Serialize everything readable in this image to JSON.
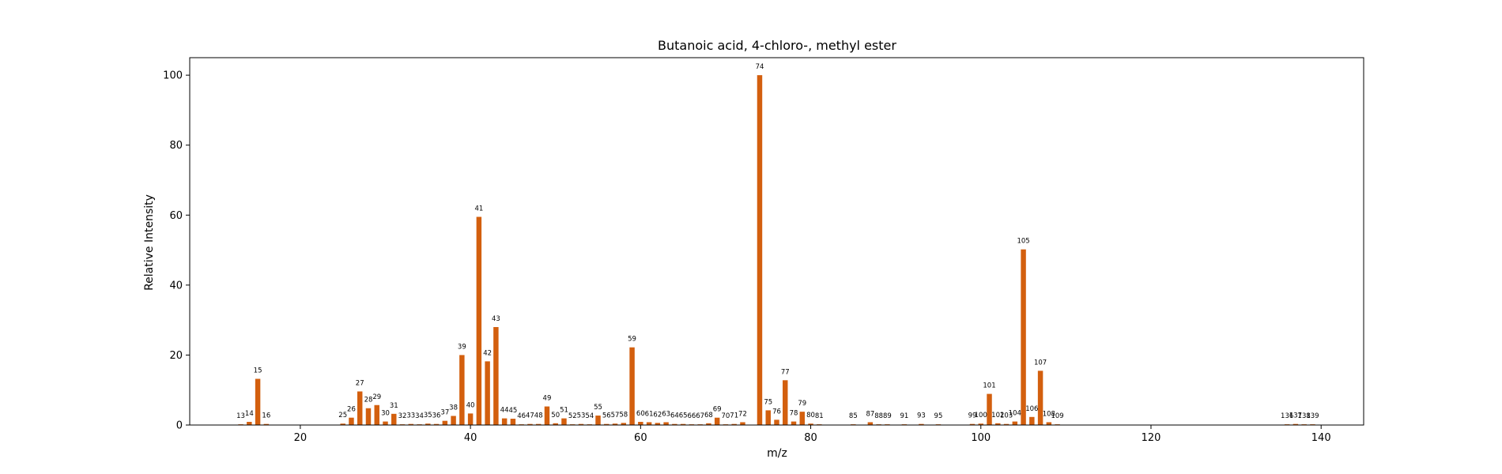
{
  "chart_data": {
    "type": "bar",
    "title": "Butanoic acid, 4-chloro-, methyl ester",
    "xlabel": "m/z",
    "ylabel": "Relative Intensity",
    "xlim": [
      7,
      145
    ],
    "ylim": [
      0,
      105
    ],
    "xticks": [
      20,
      40,
      60,
      80,
      100,
      120,
      140
    ],
    "yticks": [
      0,
      20,
      40,
      60,
      80,
      100
    ],
    "bar_color": "#d35f0e",
    "grid": false,
    "points": [
      {
        "x": 13,
        "y": 0.2
      },
      {
        "x": 14,
        "y": 0.9
      },
      {
        "x": 15,
        "y": 13.2
      },
      {
        "x": 16,
        "y": 0.3
      },
      {
        "x": 25,
        "y": 0.4
      },
      {
        "x": 26,
        "y": 2.1
      },
      {
        "x": 27,
        "y": 9.6
      },
      {
        "x": 28,
        "y": 4.8
      },
      {
        "x": 29,
        "y": 5.7
      },
      {
        "x": 30,
        "y": 1.0
      },
      {
        "x": 31,
        "y": 3.2
      },
      {
        "x": 32,
        "y": 0.2
      },
      {
        "x": 33,
        "y": 0.3
      },
      {
        "x": 34,
        "y": 0.2
      },
      {
        "x": 35,
        "y": 0.4
      },
      {
        "x": 36,
        "y": 0.3
      },
      {
        "x": 37,
        "y": 1.2
      },
      {
        "x": 38,
        "y": 2.6
      },
      {
        "x": 39,
        "y": 20.0
      },
      {
        "x": 40,
        "y": 3.3
      },
      {
        "x": 41,
        "y": 59.5
      },
      {
        "x": 42,
        "y": 18.2
      },
      {
        "x": 43,
        "y": 28.0
      },
      {
        "x": 44,
        "y": 1.9
      },
      {
        "x": 45,
        "y": 1.8
      },
      {
        "x": 46,
        "y": 0.2
      },
      {
        "x": 47,
        "y": 0.3
      },
      {
        "x": 48,
        "y": 0.3
      },
      {
        "x": 49,
        "y": 5.3
      },
      {
        "x": 50,
        "y": 0.5
      },
      {
        "x": 51,
        "y": 1.9
      },
      {
        "x": 52,
        "y": 0.2
      },
      {
        "x": 53,
        "y": 0.3
      },
      {
        "x": 54,
        "y": 0.2
      },
      {
        "x": 55,
        "y": 2.7
      },
      {
        "x": 56,
        "y": 0.3
      },
      {
        "x": 57,
        "y": 0.4
      },
      {
        "x": 58,
        "y": 0.6
      },
      {
        "x": 59,
        "y": 22.2
      },
      {
        "x": 60,
        "y": 0.9
      },
      {
        "x": 61,
        "y": 0.8
      },
      {
        "x": 62,
        "y": 0.6
      },
      {
        "x": 63,
        "y": 0.8
      },
      {
        "x": 64,
        "y": 0.3
      },
      {
        "x": 65,
        "y": 0.3
      },
      {
        "x": 66,
        "y": 0.2
      },
      {
        "x": 67,
        "y": 0.2
      },
      {
        "x": 68,
        "y": 0.5
      },
      {
        "x": 69,
        "y": 2.1
      },
      {
        "x": 70,
        "y": 0.2
      },
      {
        "x": 71,
        "y": 0.3
      },
      {
        "x": 72,
        "y": 0.8
      },
      {
        "x": 74,
        "y": 100
      },
      {
        "x": 75,
        "y": 4.2
      },
      {
        "x": 76,
        "y": 1.5
      },
      {
        "x": 77,
        "y": 12.8
      },
      {
        "x": 78,
        "y": 1.0
      },
      {
        "x": 79,
        "y": 3.8
      },
      {
        "x": 80,
        "y": 0.4
      },
      {
        "x": 81,
        "y": 0.2
      },
      {
        "x": 85,
        "y": 0.2
      },
      {
        "x": 87,
        "y": 0.8
      },
      {
        "x": 88,
        "y": 0.2
      },
      {
        "x": 89,
        "y": 0.2
      },
      {
        "x": 91,
        "y": 0.2
      },
      {
        "x": 93,
        "y": 0.3
      },
      {
        "x": 95,
        "y": 0.2
      },
      {
        "x": 99,
        "y": 0.3
      },
      {
        "x": 100,
        "y": 0.4
      },
      {
        "x": 101,
        "y": 8.9
      },
      {
        "x": 102,
        "y": 0.5
      },
      {
        "x": 103,
        "y": 0.3
      },
      {
        "x": 104,
        "y": 1.0
      },
      {
        "x": 105,
        "y": 50.2
      },
      {
        "x": 106,
        "y": 2.3
      },
      {
        "x": 107,
        "y": 15.5
      },
      {
        "x": 108,
        "y": 0.8
      },
      {
        "x": 109,
        "y": 0.2
      },
      {
        "x": 136,
        "y": 0.2
      },
      {
        "x": 137,
        "y": 0.3
      },
      {
        "x": 138,
        "y": 0.2
      },
      {
        "x": 139,
        "y": 0.2
      }
    ],
    "bar_labels": [
      "13",
      "14",
      "15",
      "16",
      "25",
      "26",
      "27",
      "28",
      "29",
      "30",
      "31",
      "32",
      "33",
      "34",
      "35",
      "36",
      "37",
      "38",
      "39",
      "40",
      "41",
      "42",
      "43",
      "44",
      "45",
      "46",
      "47",
      "48",
      "49",
      "50",
      "51",
      "52",
      "53",
      "54",
      "55",
      "56",
      "57",
      "58",
      "59",
      "60",
      "61",
      "62",
      "63",
      "64",
      "65",
      "66",
      "67",
      "68",
      "69",
      "70",
      "71",
      "72",
      "74",
      "75",
      "76",
      "77",
      "78",
      "79",
      "80",
      "81",
      "85",
      "87",
      "88",
      "89",
      "91",
      "93",
      "95",
      "99",
      "100",
      "101",
      "102",
      "103",
      "104",
      "105",
      "106",
      "107",
      "108",
      "109",
      "136",
      "137",
      "138",
      "139"
    ]
  }
}
